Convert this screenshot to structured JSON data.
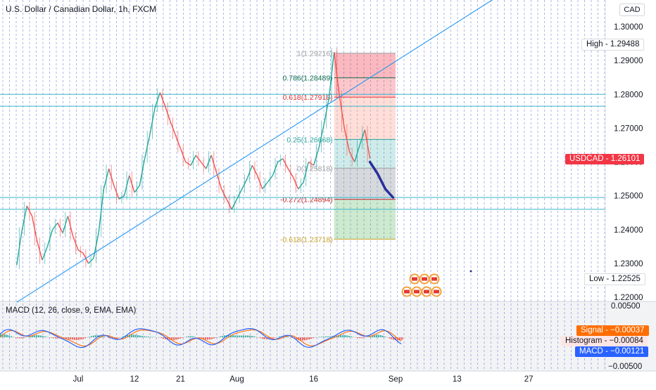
{
  "header": {
    "title": "U.S. Dollar / Canadian Dollar, 1h, FXCM",
    "currency": "CAD"
  },
  "price_tags": {
    "high": {
      "label": "High",
      "value": "1.29488"
    },
    "last": {
      "label": "USDCAD",
      "value": "1.26101"
    },
    "low": {
      "label": "Low",
      "value": "1.22525"
    }
  },
  "macd_panel": {
    "title": "MACD (12, 26, close, 9, EMA, EMA)",
    "signal": {
      "label": "Signal",
      "value": "−0.00037"
    },
    "histogram": {
      "label": "Histogram",
      "value": "−0.00084"
    },
    "macd": {
      "label": "MACD",
      "value": "−0.00121"
    },
    "y_ticks": [
      "0.00500",
      "−0.00500"
    ],
    "colors": {
      "macd": "#2962ff",
      "signal": "#ff6d00",
      "hist_pos": "#26a69a",
      "hist_neg": "#ef5350"
    }
  },
  "chart_data": {
    "type": "line",
    "title": "U.S. Dollar / Canadian Dollar, 1h, FXCM",
    "x_ticks": [
      {
        "label": "Jul",
        "day": 0
      },
      {
        "label": "12",
        "day": 11
      },
      {
        "label": "21",
        "day": 20
      },
      {
        "label": "Aug",
        "day": 31
      },
      {
        "label": "16",
        "day": 46
      },
      {
        "label": "Sep",
        "day": 62
      },
      {
        "label": "13",
        "day": 74
      },
      {
        "label": "27",
        "day": 88
      }
    ],
    "y_ticks": [
      "1.30000",
      "1.29000",
      "1.28000",
      "1.27000",
      "1.26000",
      "1.25000",
      "1.24000",
      "1.23000",
      "1.22000"
    ],
    "ylim": [
      1.2175,
      1.3085
    ],
    "price_series": {
      "name": "USDCAD",
      "points": [
        [
          -12,
          1.2295
        ],
        [
          -11,
          1.2395
        ],
        [
          -10,
          1.247
        ],
        [
          -9,
          1.244
        ],
        [
          -8,
          1.2365
        ],
        [
          -7,
          1.231
        ],
        [
          -6,
          1.235
        ],
        [
          -5,
          1.24
        ],
        [
          -4,
          1.242
        ],
        [
          -3,
          1.239
        ],
        [
          -2,
          1.244
        ],
        [
          -1,
          1.238
        ],
        [
          0,
          1.234
        ],
        [
          1,
          1.233
        ],
        [
          2,
          1.23
        ],
        [
          3,
          1.2315
        ],
        [
          4,
          1.239
        ],
        [
          5,
          1.252
        ],
        [
          6,
          1.258
        ],
        [
          7,
          1.253
        ],
        [
          8,
          1.249
        ],
        [
          9,
          1.25
        ],
        [
          10,
          1.256
        ],
        [
          11,
          1.251
        ],
        [
          12,
          1.253
        ],
        [
          13,
          1.261
        ],
        [
          14,
          1.268
        ],
        [
          15,
          1.276
        ],
        [
          16,
          1.2805
        ],
        [
          17,
          1.2765
        ],
        [
          18,
          1.272
        ],
        [
          19,
          1.268
        ],
        [
          20,
          1.264
        ],
        [
          21,
          1.26
        ],
        [
          22,
          1.259
        ],
        [
          23,
          1.262
        ],
        [
          24,
          1.26
        ],
        [
          25,
          1.258
        ],
        [
          26,
          1.262
        ],
        [
          27,
          1.257
        ],
        [
          28,
          1.252
        ],
        [
          29,
          1.249
        ],
        [
          30,
          1.246
        ],
        [
          31,
          1.249
        ],
        [
          32,
          1.252
        ],
        [
          33,
          1.255
        ],
        [
          34,
          1.259
        ],
        [
          35,
          1.256
        ],
        [
          36,
          1.252
        ],
        [
          37,
          1.254
        ],
        [
          38,
          1.256
        ],
        [
          39,
          1.26
        ],
        [
          40,
          1.261
        ],
        [
          41,
          1.258
        ],
        [
          42,
          1.2555
        ],
        [
          43,
          1.252
        ],
        [
          44,
          1.254
        ],
        [
          45,
          1.26
        ],
        [
          46,
          1.259
        ],
        [
          47,
          1.264
        ],
        [
          48,
          1.271
        ],
        [
          49,
          1.279
        ],
        [
          50,
          1.2925
        ],
        [
          51,
          1.28
        ],
        [
          52,
          1.27
        ],
        [
          53,
          1.263
        ],
        [
          54,
          1.26
        ],
        [
          55,
          1.265
        ],
        [
          56,
          1.2695
        ],
        [
          57,
          1.261
        ]
      ]
    },
    "forecast_curve": [
      [
        57,
        1.26
      ],
      [
        58.5,
        1.2565
      ],
      [
        60,
        1.252
      ],
      [
        61.5,
        1.2495
      ]
    ],
    "trendline": {
      "from": [
        -12,
        1.2185
      ],
      "to": [
        82,
        1.309
      ]
    },
    "fibonacci": {
      "start_day": 50,
      "end_day": 62,
      "levels": [
        {
          "ratio": "1",
          "price": 1.29216,
          "label": "1(1.29216)",
          "color": "#9e9e9e"
        },
        {
          "ratio": "0.786",
          "price": 1.28489,
          "label": "0.786(1.28489)",
          "color": "#0b6b4c"
        },
        {
          "ratio": "0.618",
          "price": 1.27918,
          "label": "0.618(1.27918)",
          "color": "#e53935"
        },
        {
          "ratio": "0.25",
          "price": 1.26668,
          "label": "0.25(1.26668)",
          "color": "#26a69a"
        },
        {
          "ratio": "0",
          "price": 1.25818,
          "label": "0(1.25818)",
          "color": "#9e9e9e"
        },
        {
          "ratio": "-0.272",
          "price": 1.24894,
          "label": "-0.272(1.24894)",
          "color": "#c62828"
        },
        {
          "ratio": "-0.618",
          "price": 1.23718,
          "label": "-0.618(1.23718)",
          "color": "#c9a227"
        }
      ]
    },
    "horizontal_levels": [
      1.28,
      1.2765,
      1.2495,
      1.246
    ]
  }
}
